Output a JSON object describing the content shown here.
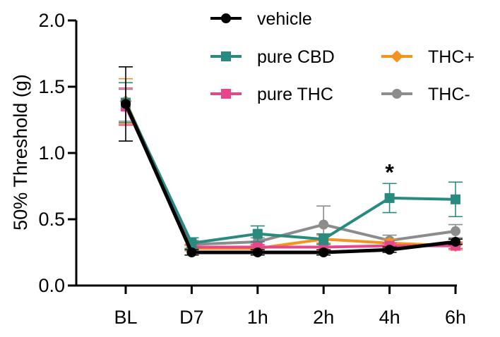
{
  "chart_data": {
    "type": "line",
    "title": "",
    "xlabel": "",
    "ylabel": "50% Threshold (g)",
    "ylim": [
      0,
      2.0
    ],
    "yticks": [
      "0.0",
      "0.5",
      "1.0",
      "1.5",
      "2.0"
    ],
    "yticks_values": [
      0,
      0.5,
      1.0,
      1.5,
      2.0
    ],
    "categories": [
      "BL",
      "D7",
      "1h",
      "2h",
      "4h",
      "6h"
    ],
    "grid": false,
    "legend_placement": "top",
    "annotations": [
      {
        "text": "*",
        "category": "4h",
        "y": 0.86
      }
    ],
    "series": [
      {
        "name": "THC-",
        "color": "#8c8c8c",
        "marker": "circle",
        "values": [
          1.36,
          0.31,
          0.33,
          0.46,
          0.34,
          0.41
        ],
        "errors": [
          0.12,
          0.03,
          0.03,
          0.14,
          0.04,
          0.05
        ]
      },
      {
        "name": "THC+",
        "color": "#f4931e",
        "marker": "diamond",
        "values": [
          1.39,
          0.28,
          0.28,
          0.35,
          0.32,
          0.3
        ],
        "errors": [
          0.17,
          0.02,
          0.02,
          0.03,
          0.03,
          0.03
        ]
      },
      {
        "name": "pure THC",
        "color": "#e8468c",
        "marker": "square",
        "values": [
          1.35,
          0.29,
          0.29,
          0.29,
          0.3,
          0.3
        ],
        "errors": [
          0.14,
          0.02,
          0.02,
          0.02,
          0.02,
          0.02
        ]
      },
      {
        "name": "pure CBD",
        "color": "#2a8a80",
        "marker": "square",
        "values": [
          1.38,
          0.32,
          0.39,
          0.35,
          0.66,
          0.65
        ],
        "errors": [
          0.15,
          0.04,
          0.06,
          0.04,
          0.11,
          0.13
        ]
      },
      {
        "name": "vehicle",
        "color": "#000000",
        "marker": "circle",
        "values": [
          1.37,
          0.25,
          0.25,
          0.25,
          0.27,
          0.33
        ],
        "errors": [
          0.28,
          0.02,
          0.02,
          0.02,
          0.02,
          0.02
        ]
      }
    ],
    "legend": [
      {
        "name": "vehicle"
      },
      {
        "name": "pure CBD"
      },
      {
        "name": "pure THC"
      },
      {
        "name": "THC+"
      },
      {
        "name": "THC-"
      }
    ]
  }
}
